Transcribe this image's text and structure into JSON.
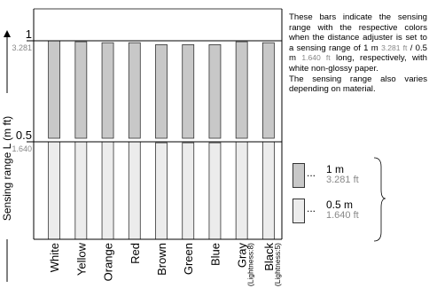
{
  "chart_data": {
    "type": "bar",
    "categories": [
      "White",
      "Yellow",
      "Orange",
      "Red",
      "Brown",
      "Green",
      "Blue",
      "Gray",
      "Black"
    ],
    "category_notes": [
      "",
      "",
      "",
      "",
      "",
      "",
      "",
      "(Lightness:8)",
      "(Lightness:5)"
    ],
    "series": [
      {
        "name": "1 m / 3.281 ft",
        "values": [
          1.0,
          0.995,
          0.99,
          0.99,
          0.98,
          0.98,
          0.98,
          0.995,
          0.99
        ]
      },
      {
        "name": "0.5 m / 1.640 ft",
        "values": [
          0.5,
          0.5,
          0.5,
          0.5,
          0.495,
          0.495,
          0.495,
          0.5,
          0.5
        ]
      }
    ],
    "ylabel": "Sensing range L (m ft)",
    "ylim": [
      0,
      1.2
    ],
    "yticks": [
      {
        "value": 1,
        "label": "1",
        "sub": "3.281"
      },
      {
        "value": 0.5,
        "label": "0.5",
        "sub": "1.640"
      }
    ],
    "colors": {
      "series_1m": "#c8c8c8",
      "series_05m": "#ececec",
      "line": "#000000",
      "sub_label": "#888888"
    }
  },
  "description": {
    "p1_a": "These bars indicate the sensing range with the respective colors when the distance adjuster is set to a sensing range of 1 m",
    "p1_ft1": "3.281 ft",
    "p1_b": "/ 0.5 m",
    "p1_ft2": "1.640 ft",
    "p1_c": "long, respectively, with white non-glossy paper.",
    "p2": "The sensing range also varies depending on material."
  },
  "legend": {
    "items": [
      {
        "dots": "...",
        "main": "1 m",
        "sub": "3.281 ft",
        "color": "#c8c8c8"
      },
      {
        "dots": "...",
        "main": "0.5 m",
        "sub": "1.640 ft",
        "color": "#ececec"
      }
    ]
  }
}
